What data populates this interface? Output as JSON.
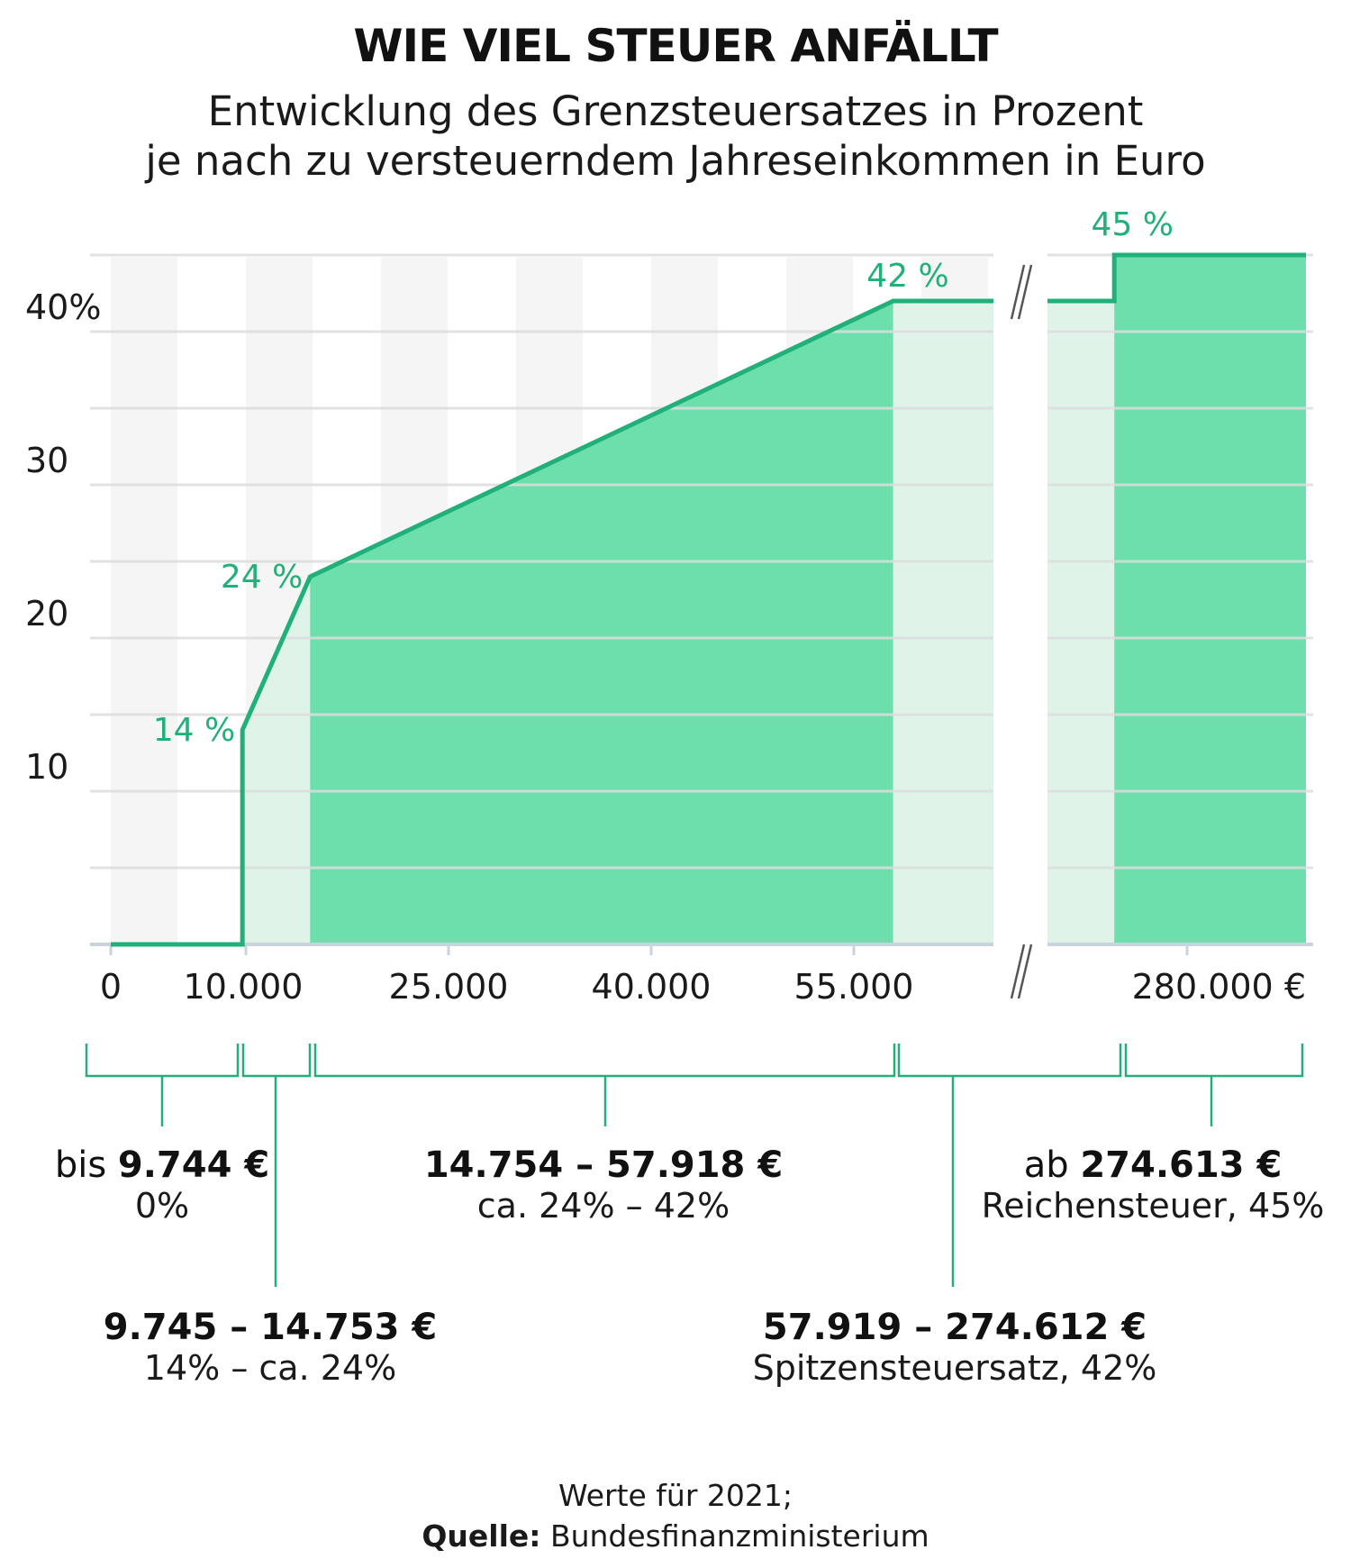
{
  "header": {
    "title": "WIE VIEL STEUER ANFÄLLT",
    "subtitle_line1": "Entwicklung des Grenzsteuersatzes in Prozent",
    "subtitle_line2": "je nach zu versteuerndem Jahreseinkommen in Euro"
  },
  "chart_data": {
    "type": "area",
    "title": "WIE VIEL STEUER ANFÄLLT",
    "subtitle": "Entwicklung des Grenzsteuersatzes in Prozent je nach zu versteuerndem Jahreseinkommen in Euro",
    "x_unit": "€",
    "y_unit": "%",
    "ylim": [
      0,
      45
    ],
    "yticks": [
      {
        "value": 10,
        "label": "10"
      },
      {
        "value": 20,
        "label": "20"
      },
      {
        "value": 30,
        "label": "30"
      },
      {
        "value": 40,
        "label": "40%"
      }
    ],
    "xticks": [
      {
        "value": 0,
        "label": "0"
      },
      {
        "value": 10000,
        "label": "10.000"
      },
      {
        "value": 25000,
        "label": "25.000"
      },
      {
        "value": 40000,
        "label": "40.000"
      },
      {
        "value": 55000,
        "label": "55.000"
      },
      {
        "value": 280000,
        "label": "280.000 €"
      }
    ],
    "axis_break": "between 55.000 and 280.000",
    "grid": true,
    "series": [
      {
        "x": [
          0,
          9744,
          9745,
          14754,
          57918,
          274612,
          274613,
          290000
        ],
        "y": [
          0,
          0,
          14,
          24,
          42,
          42,
          45,
          45
        ]
      }
    ],
    "annotations": [
      {
        "x": 9745,
        "y": 14,
        "label": "14 %"
      },
      {
        "x": 14754,
        "y": 24,
        "label": "24 %"
      },
      {
        "x": 57918,
        "y": 42,
        "label": "42 %"
      },
      {
        "x": 274613,
        "y": 45,
        "label": "45 %"
      }
    ]
  },
  "ranges": [
    {
      "prefix": "bis ",
      "bold": "9.744 €",
      "sub": "0%"
    },
    {
      "prefix": "",
      "bold": "9.745 – 14.753 €",
      "sub": "14% – ca. 24%"
    },
    {
      "prefix": "",
      "bold": "14.754 – 57.918 €",
      "sub": "ca. 24% – 42%"
    },
    {
      "prefix": "",
      "bold": "57.919 – 274.612 €",
      "sub": "Spitzensteuersatz, 42%"
    },
    {
      "prefix": "ab ",
      "bold": "274.613 €",
      "sub": "Reichensteuer, 45%"
    }
  ],
  "source": {
    "note": "Werte für 2021;",
    "label": "Quelle:",
    "text": " Bundesfinanzministerium"
  },
  "colors": {
    "line": "#22b07a",
    "fill_main": "#6ddfad",
    "fill_light": "#dff3e9",
    "grid": "#dddddd",
    "stripe": "#f5f5f5",
    "axis": "#c9d3dd",
    "bracket": "#22b07a"
  }
}
